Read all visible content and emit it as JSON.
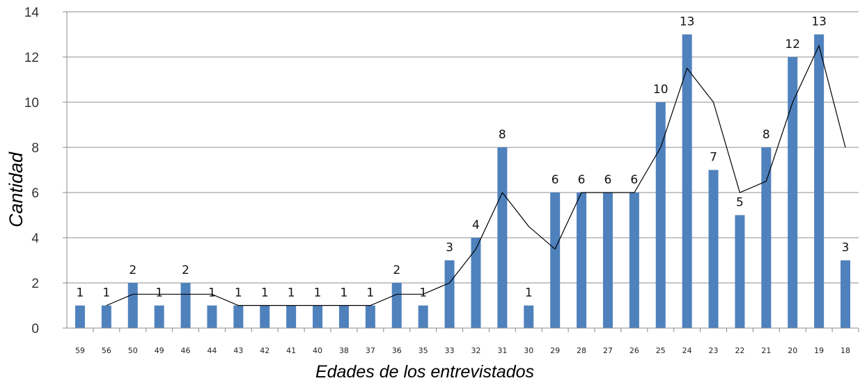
{
  "chart_data": {
    "type": "bar",
    "title": "",
    "xlabel": "Edades de los entrevistados",
    "ylabel": "Cantidad",
    "ylim": [
      0,
      14
    ],
    "yticks": [
      0,
      2,
      4,
      6,
      8,
      10,
      12,
      14
    ],
    "grid": true,
    "legend": "none",
    "bar_color": "#4F81BD",
    "line_color": "#000000",
    "categories": [
      "59",
      "56",
      "50",
      "49",
      "46",
      "44",
      "43",
      "42",
      "41",
      "40",
      "38",
      "37",
      "36",
      "35",
      "33",
      "32",
      "31",
      "30",
      "29",
      "28",
      "27",
      "26",
      "25",
      "24",
      "23",
      "22",
      "21",
      "20",
      "19",
      "18"
    ],
    "values": [
      1,
      1,
      2,
      1,
      2,
      1,
      1,
      1,
      1,
      1,
      1,
      1,
      2,
      1,
      3,
      4,
      8,
      1,
      6,
      6,
      6,
      6,
      10,
      13,
      7,
      5,
      8,
      12,
      13,
      3
    ],
    "trendline": {
      "type": "moving-average",
      "period": 2
    }
  }
}
